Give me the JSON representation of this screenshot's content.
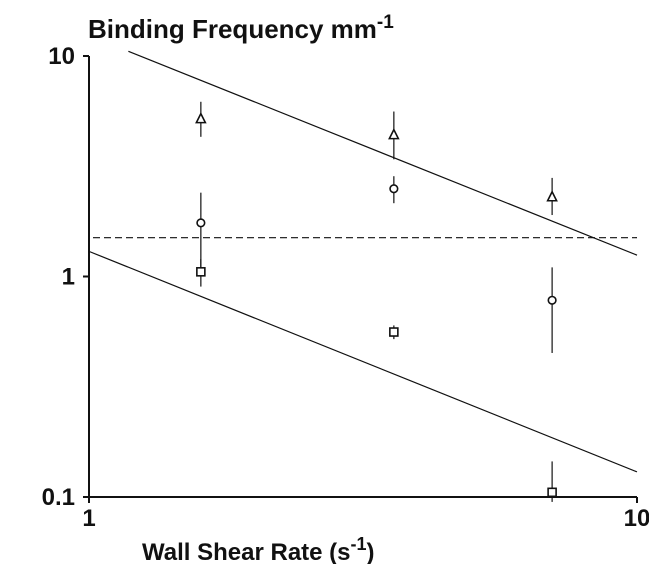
{
  "chart_data": {
    "type": "scatter",
    "title": {
      "main": "Binding Frequency mm",
      "sup": "-1"
    },
    "xlabel": {
      "main": "Wall Shear Rate (s",
      "sup": "-1",
      "tail": ")"
    },
    "x_scale": "log",
    "y_scale": "log",
    "xlim": [
      1,
      10
    ],
    "ylim": [
      0.1,
      10
    ],
    "x_ticks": [
      {
        "value": 1,
        "label": "1"
      },
      {
        "value": 10,
        "label": "10"
      }
    ],
    "y_ticks": [
      {
        "value": 10,
        "label": "10"
      },
      {
        "value": 1,
        "label": "1"
      },
      {
        "value": 0.1,
        "label": "0.1"
      }
    ],
    "grid": false,
    "series": [
      {
        "marker": "triangle",
        "points": [
          {
            "x": 1.6,
            "y": 5.2,
            "err_low": 4.3,
            "err_high": 6.2
          },
          {
            "x": 3.6,
            "y": 4.4,
            "err_low": 3.4,
            "err_high": 5.6
          },
          {
            "x": 7.0,
            "y": 2.3,
            "err_low": 1.9,
            "err_high": 2.8
          }
        ]
      },
      {
        "marker": "circle",
        "points": [
          {
            "x": 1.6,
            "y": 1.75,
            "err_low": 1.1,
            "err_high": 2.4
          },
          {
            "x": 3.6,
            "y": 2.5,
            "err_low": 2.15,
            "err_high": 2.85
          },
          {
            "x": 7.0,
            "y": 0.78,
            "err_low": 0.45,
            "err_high": 1.1
          }
        ]
      },
      {
        "marker": "square",
        "points": [
          {
            "x": 1.6,
            "y": 1.05,
            "err_low": 0.9,
            "err_high": 1.2
          },
          {
            "x": 3.6,
            "y": 0.56,
            "err_low": 0.52,
            "err_high": 0.6
          },
          {
            "x": 7.0,
            "y": 0.105,
            "err_low": 0.095,
            "err_high": 0.145
          }
        ]
      }
    ],
    "reference_lines": [
      {
        "style": "solid",
        "x1": 1.18,
        "y1": 10.5,
        "x2": 10,
        "y2": 1.25
      },
      {
        "style": "solid",
        "x1": 1,
        "y1": 1.3,
        "x2": 10,
        "y2": 0.13
      },
      {
        "style": "dashed",
        "y": 1.5
      }
    ]
  }
}
